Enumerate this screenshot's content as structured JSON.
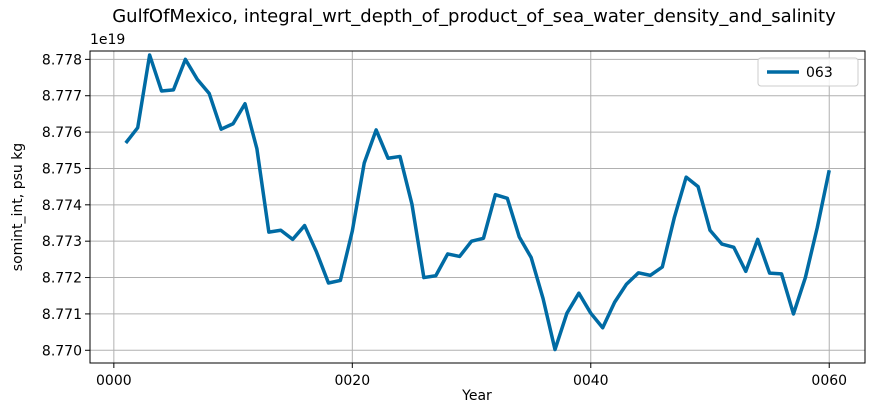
{
  "chart_data": {
    "type": "line",
    "title": "GulfOfMexico, integral_wrt_depth_of_product_of_sea_water_density_and_salinity",
    "xlabel": "Year",
    "ylabel": "somint_int, psu kg",
    "offset_text": "1e19",
    "xlim": [
      -2,
      63
    ],
    "ylim": [
      8.76965,
      8.77823
    ],
    "x_ticks": [
      0,
      20,
      40,
      60
    ],
    "x_tick_labels": [
      "0000",
      "0020",
      "0040",
      "0060"
    ],
    "y_ticks": [
      8.77,
      8.771,
      8.772,
      8.773,
      8.774,
      8.775,
      8.776,
      8.777,
      8.778
    ],
    "y_tick_labels": [
      "8.770",
      "8.771",
      "8.772",
      "8.773",
      "8.774",
      "8.775",
      "8.776",
      "8.777",
      "8.778"
    ],
    "grid": true,
    "legend_position": "top-right",
    "series": [
      {
        "name": "063",
        "color": "#006ba4",
        "x": [
          1,
          2,
          3,
          4,
          5,
          6,
          7,
          8,
          9,
          10,
          11,
          12,
          13,
          14,
          15,
          16,
          17,
          18,
          19,
          20,
          21,
          22,
          23,
          24,
          25,
          26,
          27,
          28,
          29,
          30,
          31,
          32,
          33,
          34,
          35,
          36,
          37,
          38,
          39,
          40,
          41,
          42,
          43,
          44,
          45,
          46,
          47,
          48,
          49,
          50,
          51,
          52,
          53,
          54,
          55,
          56,
          57,
          58,
          59,
          60
        ],
        "y": [
          8.7757,
          8.77612,
          8.77812,
          8.77713,
          8.77716,
          8.778,
          8.77745,
          8.77706,
          8.77608,
          8.77623,
          8.77678,
          8.77554,
          8.77325,
          8.7733,
          8.77305,
          8.77343,
          8.7727,
          8.77185,
          8.77192,
          8.77328,
          8.77515,
          8.77606,
          8.77528,
          8.77533,
          8.77402,
          8.772,
          8.77205,
          8.77265,
          8.77258,
          8.773,
          8.77308,
          8.77428,
          8.77418,
          8.77312,
          8.77255,
          8.77142,
          8.77002,
          8.77102,
          8.77157,
          8.77102,
          8.77062,
          8.77132,
          8.77182,
          8.77213,
          8.77206,
          8.77229,
          8.77364,
          8.77476,
          8.7745,
          8.7733,
          8.77292,
          8.77283,
          8.77217,
          8.77305,
          8.77212,
          8.7721,
          8.771,
          8.772,
          8.77338,
          8.77495
        ]
      }
    ]
  }
}
